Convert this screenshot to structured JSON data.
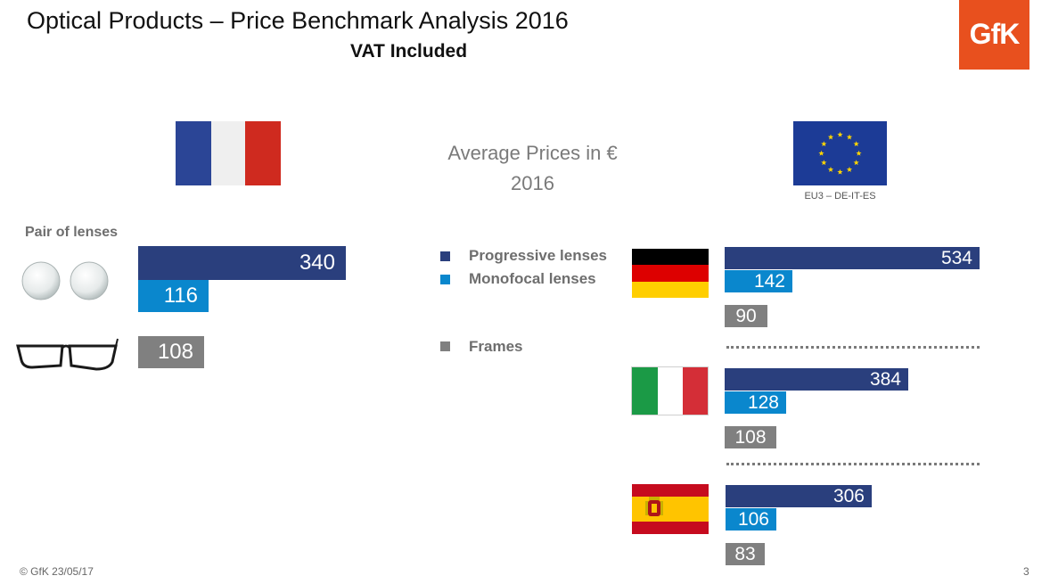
{
  "title": "Optical Products – Price Benchmark Analysis 2016",
  "subtitle": "VAT Included",
  "logo_text": "GfK",
  "center_label_line1": "Average Prices in €",
  "center_label_line2": "2016",
  "eu_caption": "EU3 – DE-IT-ES",
  "pair_label": "Pair of lenses",
  "legend": [
    {
      "label": "Progressive lenses",
      "color": "#2a3f7d"
    },
    {
      "label": "Monofocal lenses",
      "color": "#0a87cd"
    },
    {
      "label": "Frames",
      "color": "#808080"
    }
  ],
  "footer": {
    "left": "© GfK  23/05/17",
    "page": "3"
  },
  "colors": {
    "progressive": "#2a3f7d",
    "monofocal": "#0a87cd",
    "frames": "#808080",
    "logo": "#e8501e"
  },
  "chart_data": {
    "type": "bar",
    "categories": [
      "France",
      "Germany",
      "Italy",
      "Spain"
    ],
    "series": [
      {
        "name": "Progressive lenses",
        "values": [
          340,
          534,
          384,
          306
        ]
      },
      {
        "name": "Monofocal lenses",
        "values": [
          116,
          142,
          128,
          106
        ]
      },
      {
        "name": "Frames",
        "values": [
          108,
          90,
          108,
          83
        ]
      }
    ],
    "title": "Average Prices in € 2016",
    "xlabel": "",
    "ylabel": "",
    "grid": false,
    "legend": "center"
  }
}
